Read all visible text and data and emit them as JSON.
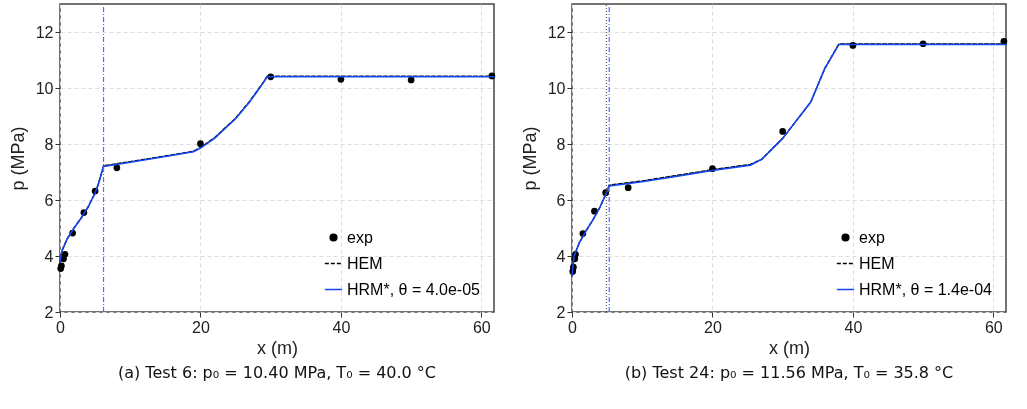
{
  "chart_data": [
    {
      "type": "line",
      "xlabel": "x (m)",
      "ylabel": "p (MPa)",
      "xlim": [
        0,
        61.8
      ],
      "ylim": [
        2,
        13
      ],
      "xticks": [
        0,
        20,
        40,
        60
      ],
      "yticks": [
        2,
        4,
        6,
        8,
        10,
        12
      ],
      "grid": true,
      "legend": "bottom right",
      "annotations": [
        "(a) Test 6: p₀ = 10.40 MPa, T₀ = 40.0 °C"
      ],
      "ref_lines": [
        {
          "axis": "x",
          "value": 6.2,
          "color": "#4d70ff",
          "line_style": "dashed"
        }
      ],
      "series": [
        {
          "name": "exp",
          "type": "scatter",
          "color": "#000000",
          "x": [
            0.1,
            0.2,
            0.5,
            0.7,
            1.8,
            3.4,
            5.0,
            8.1,
            20.0,
            30.0,
            40.0,
            50.0,
            61.5
          ],
          "values": [
            3.55,
            3.65,
            3.9,
            4.06,
            4.82,
            5.55,
            6.32,
            7.15,
            8.01,
            10.4,
            10.31,
            10.29,
            10.43
          ]
        },
        {
          "name": "HEM",
          "type": "line",
          "color": "#000000",
          "line_style": "dashed",
          "x": [
            0,
            0.3,
            1,
            2,
            3,
            4,
            5,
            5.5,
            6.2,
            10,
            15,
            19,
            20,
            22,
            25,
            27,
            29,
            29.5,
            61.8
          ],
          "values": [
            3.8,
            4.2,
            4.6,
            5.0,
            5.35,
            5.75,
            6.25,
            6.6,
            7.22,
            7.37,
            7.57,
            7.74,
            7.87,
            8.22,
            8.92,
            9.52,
            10.22,
            10.42,
            10.42
          ]
        },
        {
          "name": "HRM*, θ = 4.0e-05",
          "type": "line",
          "color": "#1447f5",
          "line_style": "solid",
          "x": [
            0,
            0.3,
            1,
            2,
            3,
            4,
            5,
            5.5,
            6.2,
            10,
            15,
            19,
            20,
            22,
            25,
            27,
            29,
            29.5,
            61.8
          ],
          "values": [
            3.8,
            4.2,
            4.6,
            5.0,
            5.35,
            5.75,
            6.25,
            6.6,
            7.2,
            7.35,
            7.55,
            7.72,
            7.85,
            8.2,
            8.9,
            9.5,
            10.2,
            10.4,
            10.4
          ]
        }
      ]
    },
    {
      "type": "line",
      "xlabel": "x (m)",
      "ylabel": "p (MPa)",
      "xlim": [
        0,
        61.8
      ],
      "ylim": [
        2,
        13
      ],
      "xticks": [
        0,
        20,
        40,
        60
      ],
      "yticks": [
        2,
        4,
        6,
        8,
        10,
        12
      ],
      "grid": true,
      "legend": "bottom right",
      "annotations": [
        "(b) Test 24: p₀ = 11.56 MPa, T₀ = 35.8 °C"
      ],
      "ref_lines": [
        {
          "axis": "x",
          "value": 4.9,
          "color": "#555555",
          "line_style": "dotted"
        },
        {
          "axis": "x",
          "value": 5.3,
          "color": "#4d70ff",
          "line_style": "dashed"
        }
      ],
      "series": [
        {
          "name": "exp",
          "type": "scatter",
          "color": "#000000",
          "x": [
            0.1,
            0.2,
            0.4,
            0.5,
            1.55,
            3.2,
            4.8,
            8.0,
            20.0,
            30.0,
            40.0,
            50.0,
            61.5
          ],
          "values": [
            3.45,
            3.6,
            3.9,
            4.06,
            4.8,
            5.6,
            6.26,
            6.44,
            7.12,
            8.45,
            11.52,
            11.58,
            11.67
          ]
        },
        {
          "name": "HEM",
          "type": "line",
          "color": "#000000",
          "line_style": "dashed",
          "x": [
            0,
            0.3,
            1,
            2,
            3,
            4,
            4.8,
            5.3,
            10,
            15,
            20,
            25.4,
            27,
            30,
            34,
            36,
            38,
            61.8
          ],
          "values": [
            3.3,
            4.0,
            4.45,
            4.9,
            5.3,
            5.75,
            6.2,
            6.53,
            6.68,
            6.88,
            7.08,
            7.27,
            7.45,
            8.2,
            9.5,
            10.7,
            11.57,
            11.57
          ]
        },
        {
          "name": "HRM*, θ = 1.4e-04",
          "type": "line",
          "color": "#1447f5",
          "line_style": "solid",
          "x": [
            0,
            0.3,
            1,
            2,
            3,
            4,
            4.8,
            5.3,
            10,
            15,
            20,
            25.4,
            27,
            30,
            34,
            36,
            38,
            61.8
          ],
          "values": [
            3.3,
            4.0,
            4.45,
            4.9,
            5.3,
            5.75,
            6.2,
            6.5,
            6.65,
            6.85,
            7.05,
            7.24,
            7.45,
            8.2,
            9.5,
            10.7,
            11.55,
            11.55
          ]
        }
      ]
    }
  ]
}
